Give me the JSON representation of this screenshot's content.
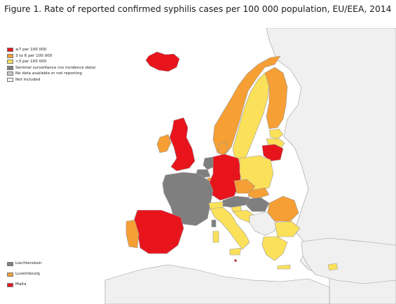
{
  "title": "Figure 1. Rate of reported confirmed syphilis cases per 100 000 population, EU/EEA, 2014",
  "colors": {
    "high": "#e8141c",
    "mid": "#f59f35",
    "low": "#fbe15a",
    "sentinel": "#7f7f7f",
    "no_data": "#c5c5c5",
    "not_included": "#f0f0f0",
    "sea": "#ffffff",
    "border": "#a0a0a0"
  },
  "legend": [
    {
      "label": "≥7 per 100 000",
      "color": "#e8141c"
    },
    {
      "label": "3 to 6 per 100 000",
      "color": "#f59f35"
    },
    {
      "label": "<3 per 100 000",
      "color": "#fbe15a"
    },
    {
      "label": "Sentinel surveillance (no incidence data)",
      "color": "#7f7f7f"
    },
    {
      "label": "No data available or not reporting",
      "color": "#c5c5c5"
    },
    {
      "label": "Not included",
      "color": "#f0f0f0"
    }
  ],
  "small_countries": [
    {
      "label": "Liechtenstein",
      "color": "#7f7f7f"
    },
    {
      "label": "Luxembourg",
      "color": "#f59f35"
    },
    {
      "label": "Malta",
      "color": "#e8141c"
    }
  ]
}
